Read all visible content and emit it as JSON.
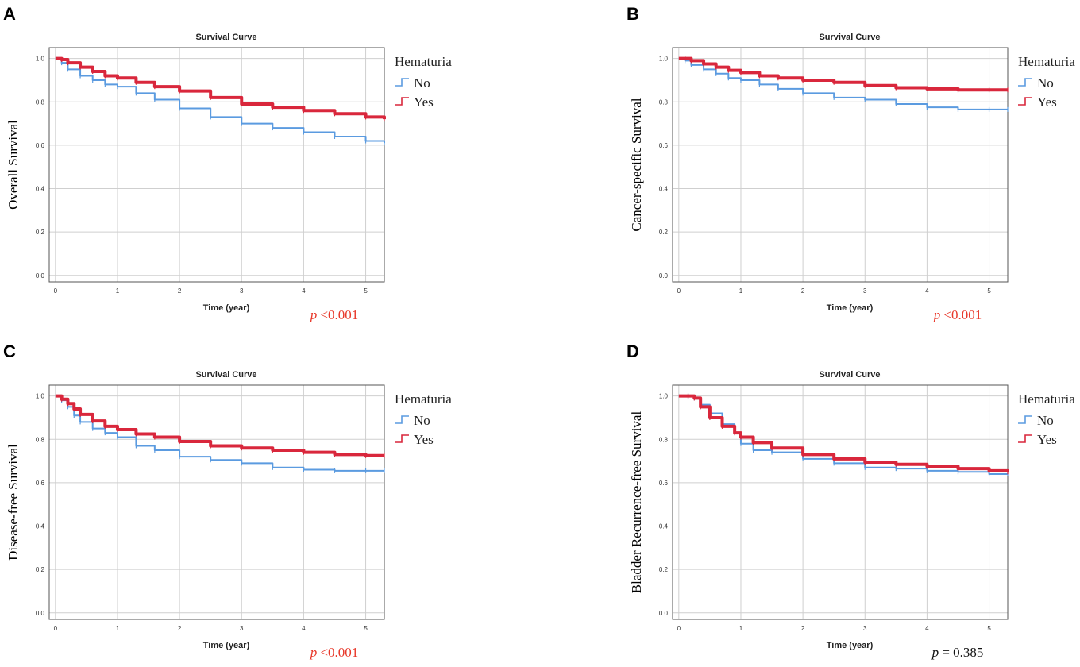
{
  "chart_data": [
    {
      "type": "line",
      "panel_letter": "A",
      "title": "Survival Curve",
      "xlabel": "Time (year)",
      "ylabel": "Overall Survival",
      "xlim": [
        -0.1,
        5.3
      ],
      "ylim": [
        -0.03,
        1.05
      ],
      "x_ticks": [
        0,
        1,
        2,
        3,
        4,
        5
      ],
      "y_ticks": [
        0.0,
        0.2,
        0.4,
        0.6,
        0.8,
        1.0
      ],
      "x_tick_labels": [
        "0",
        "1",
        "2",
        "3",
        "4",
        "5"
      ],
      "y_tick_labels": [
        "0.0",
        "0.2",
        "0.4",
        "0.6",
        "0.8",
        "1.0"
      ],
      "legend_title": "Hematuria",
      "legend_position": "top-right",
      "p_prefix": "p",
      "p_value": "<0.001",
      "p_color": "#e8382a",
      "series": [
        {
          "name": "No",
          "color": "#5b9be0",
          "x": [
            0,
            0.1,
            0.2,
            0.4,
            0.6,
            0.8,
            1.0,
            1.3,
            1.6,
            2.0,
            2.5,
            3.0,
            3.5,
            4.0,
            4.5,
            5.0,
            5.3
          ],
          "y": [
            1.0,
            0.98,
            0.95,
            0.92,
            0.9,
            0.88,
            0.87,
            0.84,
            0.81,
            0.77,
            0.73,
            0.7,
            0.68,
            0.66,
            0.64,
            0.62,
            0.61
          ]
        },
        {
          "name": "Yes",
          "color": "#d9273c",
          "x": [
            0,
            0.1,
            0.2,
            0.4,
            0.6,
            0.8,
            1.0,
            1.3,
            1.6,
            2.0,
            2.5,
            3.0,
            3.5,
            4.0,
            4.5,
            5.0,
            5.3
          ],
          "y": [
            1.0,
            0.995,
            0.98,
            0.96,
            0.94,
            0.92,
            0.91,
            0.89,
            0.87,
            0.85,
            0.82,
            0.79,
            0.775,
            0.76,
            0.745,
            0.73,
            0.72
          ]
        }
      ]
    },
    {
      "type": "line",
      "panel_letter": "B",
      "title": "Survival Curve",
      "xlabel": "Time (year)",
      "ylabel": "Cancer-specific Survival",
      "xlim": [
        -0.1,
        5.3
      ],
      "ylim": [
        -0.03,
        1.05
      ],
      "x_ticks": [
        0,
        1,
        2,
        3,
        4,
        5
      ],
      "y_ticks": [
        0.0,
        0.2,
        0.4,
        0.6,
        0.8,
        1.0
      ],
      "x_tick_labels": [
        "0",
        "1",
        "2",
        "3",
        "4",
        "5"
      ],
      "y_tick_labels": [
        "0.0",
        "0.2",
        "0.4",
        "0.6",
        "0.8",
        "1.0"
      ],
      "legend_title": "Hematuria",
      "legend_position": "top-right",
      "p_prefix": "p",
      "p_value": "<0.001",
      "p_color": "#e8382a",
      "series": [
        {
          "name": "No",
          "color": "#5b9be0",
          "x": [
            0,
            0.1,
            0.2,
            0.4,
            0.6,
            0.8,
            1.0,
            1.3,
            1.6,
            2.0,
            2.5,
            3.0,
            3.5,
            4.0,
            4.5,
            5.0,
            5.3
          ],
          "y": [
            1.0,
            0.99,
            0.97,
            0.95,
            0.93,
            0.91,
            0.9,
            0.88,
            0.86,
            0.84,
            0.82,
            0.81,
            0.79,
            0.775,
            0.765,
            0.765,
            0.765
          ]
        },
        {
          "name": "Yes",
          "color": "#d9273c",
          "x": [
            0,
            0.1,
            0.2,
            0.4,
            0.6,
            0.8,
            1.0,
            1.3,
            1.6,
            2.0,
            2.5,
            3.0,
            3.5,
            4.0,
            4.5,
            5.0,
            5.3
          ],
          "y": [
            1.0,
            1.0,
            0.99,
            0.975,
            0.96,
            0.945,
            0.935,
            0.92,
            0.91,
            0.9,
            0.89,
            0.875,
            0.865,
            0.86,
            0.855,
            0.855,
            0.855
          ]
        }
      ]
    },
    {
      "type": "line",
      "panel_letter": "C",
      "title": "Survival Curve",
      "xlabel": "Time (year)",
      "ylabel": "Disease-free Survival",
      "xlim": [
        -0.1,
        5.3
      ],
      "ylim": [
        -0.03,
        1.05
      ],
      "x_ticks": [
        0,
        1,
        2,
        3,
        4,
        5
      ],
      "y_ticks": [
        0.0,
        0.2,
        0.4,
        0.6,
        0.8,
        1.0
      ],
      "x_tick_labels": [
        "0",
        "1",
        "2",
        "3",
        "4",
        "5"
      ],
      "y_tick_labels": [
        "0.0",
        "0.2",
        "0.4",
        "0.6",
        "0.8",
        "1.0"
      ],
      "legend_title": "Hematuria",
      "legend_position": "top-right",
      "p_prefix": "p",
      "p_value": "<0.001",
      "p_color": "#e8382a",
      "series": [
        {
          "name": "No",
          "color": "#5b9be0",
          "x": [
            0,
            0.1,
            0.2,
            0.3,
            0.4,
            0.6,
            0.8,
            1.0,
            1.3,
            1.6,
            2.0,
            2.5,
            3.0,
            3.5,
            4.0,
            4.5,
            5.0,
            5.3
          ],
          "y": [
            1.0,
            0.98,
            0.95,
            0.91,
            0.88,
            0.85,
            0.83,
            0.81,
            0.77,
            0.75,
            0.72,
            0.705,
            0.69,
            0.67,
            0.66,
            0.655,
            0.655,
            0.655
          ]
        },
        {
          "name": "Yes",
          "color": "#d9273c",
          "x": [
            0,
            0.1,
            0.2,
            0.3,
            0.4,
            0.6,
            0.8,
            1.0,
            1.3,
            1.6,
            2.0,
            2.5,
            3.0,
            3.5,
            4.0,
            4.5,
            5.0,
            5.3
          ],
          "y": [
            1.0,
            0.985,
            0.965,
            0.94,
            0.915,
            0.885,
            0.86,
            0.845,
            0.825,
            0.81,
            0.79,
            0.77,
            0.76,
            0.75,
            0.74,
            0.73,
            0.725,
            0.725
          ]
        }
      ]
    },
    {
      "type": "line",
      "panel_letter": "D",
      "title": "Survival Curve",
      "xlabel": "Time (year)",
      "ylabel": "Bladder Recurrence-free Survival",
      "xlim": [
        -0.1,
        5.3
      ],
      "ylim": [
        -0.03,
        1.05
      ],
      "x_ticks": [
        0,
        1,
        2,
        3,
        4,
        5
      ],
      "y_ticks": [
        0.0,
        0.2,
        0.4,
        0.6,
        0.8,
        1.0
      ],
      "x_tick_labels": [
        "0",
        "1",
        "2",
        "3",
        "4",
        "5"
      ],
      "y_tick_labels": [
        "0.0",
        "0.2",
        "0.4",
        "0.6",
        "0.8",
        "1.0"
      ],
      "legend_title": "Hematuria",
      "legend_position": "top-right",
      "p_prefix": "p",
      "p_value": "= 0.385",
      "p_color": "#111111",
      "series": [
        {
          "name": "No",
          "color": "#5b9be0",
          "x": [
            0,
            0.15,
            0.25,
            0.35,
            0.5,
            0.7,
            0.9,
            1.0,
            1.2,
            1.5,
            2.0,
            2.5,
            3.0,
            3.5,
            4.0,
            4.5,
            5.0,
            5.3
          ],
          "y": [
            1.0,
            1.0,
            0.99,
            0.96,
            0.92,
            0.87,
            0.83,
            0.78,
            0.75,
            0.74,
            0.71,
            0.69,
            0.67,
            0.665,
            0.655,
            0.65,
            0.64,
            0.64
          ]
        },
        {
          "name": "Yes",
          "color": "#d9273c",
          "x": [
            0,
            0.15,
            0.25,
            0.35,
            0.5,
            0.7,
            0.9,
            1.0,
            1.2,
            1.5,
            2.0,
            2.5,
            3.0,
            3.5,
            4.0,
            4.5,
            5.0,
            5.3
          ],
          "y": [
            1.0,
            1.0,
            0.99,
            0.95,
            0.9,
            0.86,
            0.83,
            0.81,
            0.785,
            0.76,
            0.73,
            0.71,
            0.695,
            0.685,
            0.675,
            0.665,
            0.655,
            0.65
          ]
        }
      ]
    }
  ]
}
